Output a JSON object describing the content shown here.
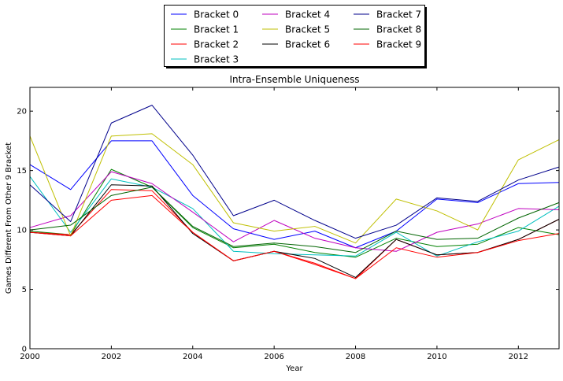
{
  "chart_data": {
    "type": "line",
    "title": "Intra-Ensemble Uniqueness",
    "xlabel": "Year",
    "ylabel": "Games Different From Other 9 Bracket",
    "xlim": [
      2000,
      2013
    ],
    "ylim": [
      0,
      22
    ],
    "x_ticks": [
      2000,
      2002,
      2004,
      2006,
      2008,
      2010,
      2012
    ],
    "y_ticks": [
      0,
      5,
      10,
      15,
      20
    ],
    "grid": false,
    "legend_placement": "top-center, outside plot",
    "x": [
      2000,
      2001,
      2002,
      2003,
      2004,
      2005,
      2006,
      2007,
      2008,
      2009,
      2010,
      2011,
      2012,
      2013
    ],
    "series": [
      {
        "name": "Bracket 0",
        "color": "#0000ff",
        "values": [
          15.5,
          13.4,
          17.5,
          17.5,
          12.9,
          10.1,
          9.2,
          9.9,
          8.5,
          9.9,
          12.6,
          12.3,
          13.9,
          14.0
        ]
      },
      {
        "name": "Bracket 1",
        "color": "#008000",
        "values": [
          9.9,
          9.6,
          15.1,
          13.6,
          10.2,
          8.5,
          8.8,
          8.1,
          7.7,
          9.3,
          8.6,
          8.8,
          10.2,
          9.6
        ]
      },
      {
        "name": "Bracket 2",
        "color": "#ff0000",
        "values": [
          9.8,
          9.6,
          13.4,
          13.3,
          9.8,
          7.4,
          8.2,
          7.1,
          5.9,
          9.2,
          7.9,
          8.1,
          9.2,
          10.9
        ]
      },
      {
        "name": "Bracket 3",
        "color": "#00bfbf",
        "values": [
          14.5,
          9.8,
          14.3,
          13.6,
          11.8,
          8.2,
          8.0,
          7.9,
          7.8,
          9.8,
          7.8,
          9.0,
          9.9,
          12.0
        ]
      },
      {
        "name": "Bracket 4",
        "color": "#bf00bf",
        "values": [
          10.2,
          11.2,
          14.9,
          13.9,
          11.5,
          9.0,
          10.8,
          9.3,
          8.5,
          8.2,
          9.8,
          10.5,
          11.8,
          11.7
        ]
      },
      {
        "name": "Bracket 5",
        "color": "#bfbf00",
        "values": [
          17.9,
          9.5,
          17.9,
          18.1,
          15.5,
          10.6,
          9.9,
          10.3,
          8.9,
          12.6,
          11.6,
          10.0,
          15.9,
          17.6
        ]
      },
      {
        "name": "Bracket 6",
        "color": "#000000",
        "values": [
          9.8,
          9.5,
          13.8,
          13.7,
          9.7,
          7.4,
          8.2,
          7.6,
          6.0,
          9.2,
          7.9,
          8.1,
          9.2,
          10.9
        ]
      },
      {
        "name": "Bracket 7",
        "color": "#00008b",
        "values": [
          13.8,
          10.7,
          19.0,
          20.5,
          16.3,
          11.2,
          12.5,
          10.8,
          9.3,
          10.4,
          12.7,
          12.4,
          14.2,
          15.3
        ]
      },
      {
        "name": "Bracket 8",
        "color": "#006400",
        "values": [
          10.0,
          10.4,
          12.9,
          13.6,
          10.3,
          8.6,
          8.9,
          8.6,
          8.1,
          9.9,
          9.2,
          9.3,
          11.0,
          12.3
        ]
      },
      {
        "name": "Bracket 9",
        "color": "#ff0000",
        "values": [
          9.8,
          9.5,
          12.5,
          12.9,
          9.8,
          7.4,
          8.2,
          7.2,
          5.9,
          8.5,
          7.7,
          8.1,
          9.1,
          9.7
        ]
      }
    ]
  }
}
